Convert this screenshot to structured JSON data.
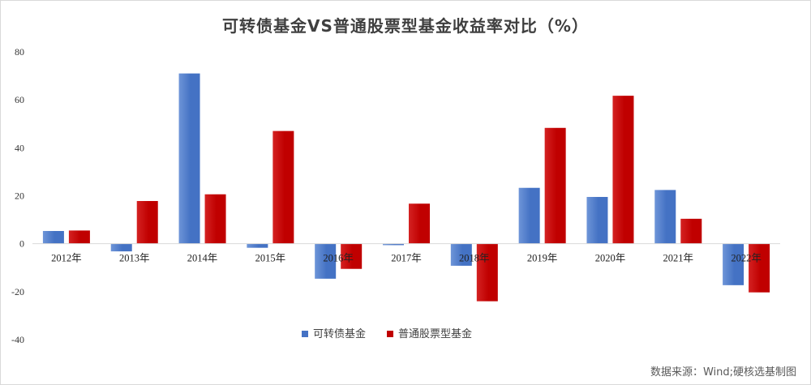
{
  "colors": {
    "series_1": "#4472c4",
    "series_1_light": "#6e95d8",
    "series_2": "#c00000",
    "series_2_light": "#d42222",
    "gridline": "#d9d9d9",
    "title": "#3f3f3f"
  },
  "source": "数据来源：Wind;硬核选基制图",
  "chart_data": {
    "type": "bar",
    "title": "可转债基金VS普通股票型基金收益率对比（%）",
    "xlabel": "",
    "ylabel": "",
    "categories": [
      "2012年",
      "2013年",
      "2014年",
      "2015年",
      "2016年",
      "2017年",
      "2018年",
      "2019年",
      "2020年",
      "2021年",
      "2022年"
    ],
    "series": [
      {
        "name": "可转债基金",
        "values": [
          5.3,
          -3.2,
          71.0,
          -1.7,
          -14.6,
          -0.6,
          -9.2,
          23.3,
          19.5,
          22.4,
          -17.3
        ]
      },
      {
        "name": "普通股票型基金",
        "values": [
          5.5,
          17.8,
          20.6,
          47.0,
          -10.5,
          16.7,
          -24.0,
          48.3,
          61.7,
          10.4,
          -20.3
        ]
      }
    ],
    "ylim": [
      -40,
      80
    ],
    "yticks": [
      80,
      60,
      40,
      20,
      0,
      -20,
      -40
    ],
    "grid": false,
    "legend_position": "bottom-center"
  }
}
